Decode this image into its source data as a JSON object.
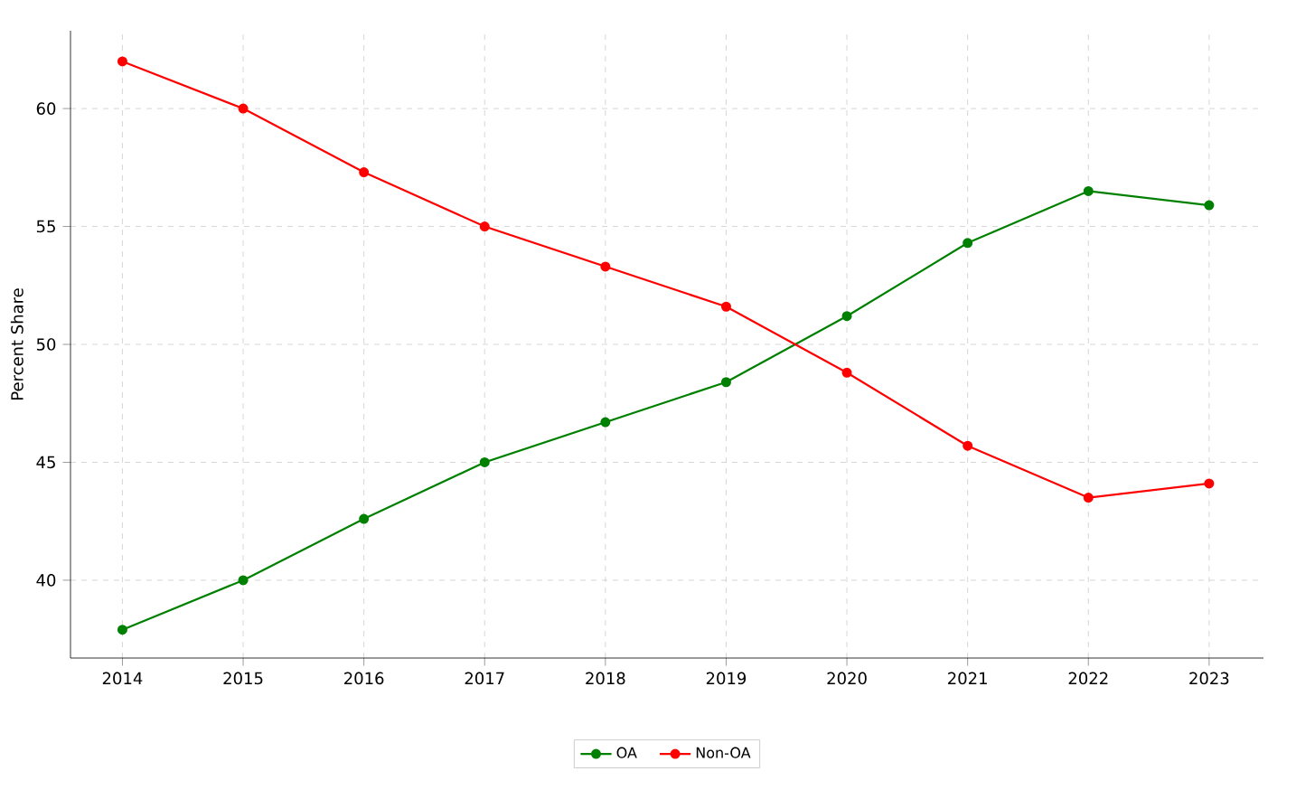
{
  "chart_data": {
    "type": "line",
    "ylabel": "Percent Share",
    "x": [
      2014,
      2015,
      2016,
      2017,
      2018,
      2019,
      2020,
      2021,
      2022,
      2023
    ],
    "series": [
      {
        "name": "OA",
        "color": "#008000",
        "values": [
          37.9,
          40.0,
          42.6,
          45.0,
          46.7,
          48.4,
          51.2,
          54.3,
          56.5,
          55.9
        ]
      },
      {
        "name": "Non-OA",
        "color": "#ff0000",
        "values": [
          62.0,
          60.0,
          57.3,
          55.0,
          53.3,
          51.6,
          48.8,
          45.7,
          43.5,
          44.1
        ]
      }
    ],
    "xlim": [
      2013.57,
      2023.45
    ],
    "ylim": [
      36.7,
      63.3
    ],
    "xticks": [
      2014,
      2015,
      2016,
      2017,
      2018,
      2019,
      2020,
      2021,
      2022,
      2023
    ],
    "yticks": [
      40,
      45,
      50,
      55,
      60
    ],
    "grid": true,
    "legend": "bottom",
    "marker": "circle",
    "line_style": "solid"
  }
}
